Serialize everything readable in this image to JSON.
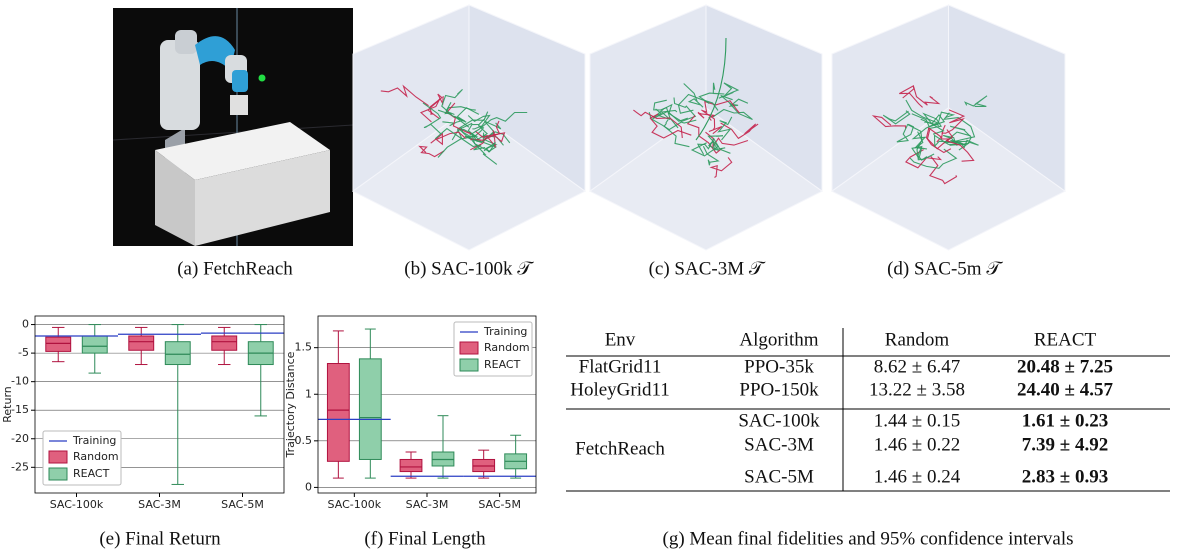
{
  "figures": [
    {
      "caption": "(a) FetchReach"
    },
    {
      "caption": "(b) SAC-100k 𝒯"
    },
    {
      "caption": "(c) SAC-3M 𝒯"
    },
    {
      "caption": "(d) SAC-5m 𝒯"
    }
  ],
  "chart_data": [
    {
      "type": "box",
      "caption": "(e) Final Return",
      "y_label": "Return",
      "categories": [
        "SAC-100k",
        "SAC-3M",
        "SAC-5M"
      ],
      "ylim": [
        -29.5,
        1.5
      ],
      "yticks": [
        0,
        -5,
        -10,
        -15,
        -20,
        -25
      ],
      "grid": true,
      "legend": "lower left",
      "training": {
        "name": "Training",
        "color": "#2b3fc4",
        "values": [
          -2,
          -1.7,
          -1.5
        ]
      },
      "series": [
        {
          "name": "Random",
          "color": "#e0607e",
          "edge": "#b0123f",
          "boxes": [
            {
              "whislo": -6.5,
              "q1": -4.7,
              "med": -3.3,
              "q3": -2.2,
              "whishi": -0.5
            },
            {
              "whislo": -7,
              "q1": -4.5,
              "med": -3,
              "q3": -2,
              "whishi": -0.5
            },
            {
              "whislo": -7,
              "q1": -4.5,
              "med": -3,
              "q3": -2,
              "whishi": -0.5
            }
          ]
        },
        {
          "name": "REACT",
          "color": "#8fcfaa",
          "edge": "#2e8a58",
          "boxes": [
            {
              "whislo": -8.5,
              "q1": -5,
              "med": -3.8,
              "q3": -2,
              "whishi": 0
            },
            {
              "whislo": -28,
              "q1": -7,
              "med": -5.2,
              "q3": -3,
              "whishi": 0
            },
            {
              "whislo": -16,
              "q1": -7,
              "med": -5,
              "q3": -3,
              "whishi": 0
            }
          ]
        }
      ]
    },
    {
      "type": "box",
      "caption": "(f) Final Length",
      "y_label": "Trajectory Distance",
      "categories": [
        "SAC-100k",
        "SAC-3M",
        "SAC-5M"
      ],
      "ylim": [
        -0.06,
        1.84
      ],
      "yticks": [
        0,
        0.5,
        1,
        1.5
      ],
      "grid": true,
      "legend": "upper right",
      "training": {
        "name": "Training",
        "color": "#2b3fc4",
        "values": [
          0.73,
          0.12,
          0.12
        ]
      },
      "series": [
        {
          "name": "Random",
          "color": "#e0607e",
          "edge": "#b0123f",
          "boxes": [
            {
              "whislo": 0.1,
              "q1": 0.28,
              "med": 0.83,
              "q3": 1.33,
              "whishi": 1.68
            },
            {
              "whislo": 0.1,
              "q1": 0.17,
              "med": 0.22,
              "q3": 0.3,
              "whishi": 0.38
            },
            {
              "whislo": 0.1,
              "q1": 0.17,
              "med": 0.23,
              "q3": 0.3,
              "whishi": 0.4
            }
          ]
        },
        {
          "name": "REACT",
          "color": "#8fcfaa",
          "edge": "#2e8a58",
          "boxes": [
            {
              "whislo": 0.1,
              "q1": 0.3,
              "med": 0.75,
              "q3": 1.38,
              "whishi": 1.7
            },
            {
              "whislo": 0.1,
              "q1": 0.23,
              "med": 0.3,
              "q3": 0.38,
              "whishi": 0.77
            },
            {
              "whislo": 0.1,
              "q1": 0.2,
              "med": 0.28,
              "q3": 0.36,
              "whishi": 0.56
            }
          ]
        }
      ]
    }
  ],
  "table": {
    "caption": "(g) Mean final fidelities and 95% confidence intervals",
    "header": [
      "Env",
      "Algorithm",
      "Random",
      "REACT"
    ],
    "groups": [
      {
        "env": "FlatGrid11",
        "rows": [
          {
            "algorithm": "PPO-35k",
            "random": "8.62 ± 6.47",
            "react": "20.48 ± 7.25"
          }
        ]
      },
      {
        "env": "HoleyGrid11",
        "rows": [
          {
            "algorithm": "PPO-150k",
            "random": "13.22 ± 3.58",
            "react": "24.40 ± 4.57"
          }
        ]
      },
      {
        "env": "FetchReach",
        "rows": [
          {
            "algorithm": "SAC-100k",
            "random": "1.44 ± 0.15",
            "react": "1.61 ± 0.23"
          },
          {
            "algorithm": "SAC-3M",
            "random": "1.46 ± 0.22",
            "react": "7.39 ± 4.92"
          },
          {
            "algorithm": "SAC-5M",
            "random": "1.46 ± 0.24",
            "react": "2.83 ± 0.93"
          }
        ]
      }
    ]
  }
}
